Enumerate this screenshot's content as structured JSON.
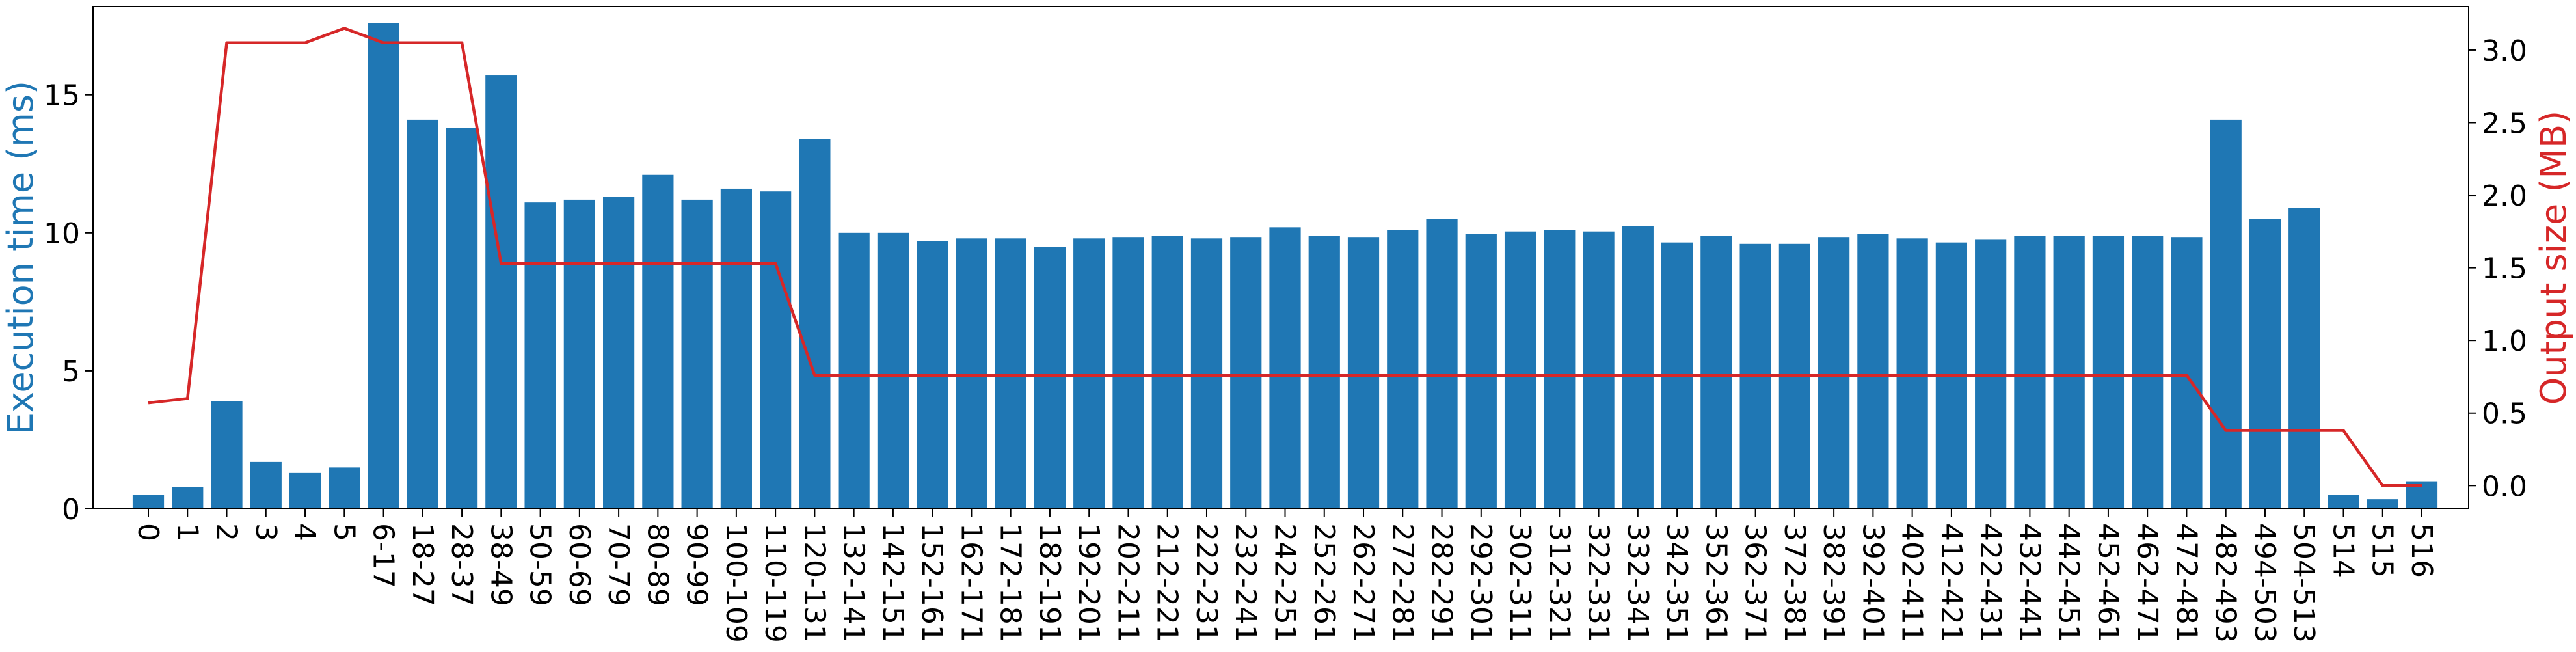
{
  "chart_data": {
    "type": "bar",
    "title": "",
    "xlabel": "",
    "categories": [
      "0",
      "1",
      "2",
      "3",
      "4",
      "5",
      "6-17",
      "18-27",
      "28-37",
      "38-49",
      "50-59",
      "60-69",
      "70-79",
      "80-89",
      "90-99",
      "100-109",
      "110-119",
      "120-131",
      "132-141",
      "142-151",
      "152-161",
      "162-171",
      "172-181",
      "182-191",
      "192-201",
      "202-211",
      "212-221",
      "222-231",
      "232-241",
      "242-251",
      "252-261",
      "262-271",
      "272-281",
      "282-291",
      "292-301",
      "302-311",
      "312-321",
      "322-331",
      "332-341",
      "342-351",
      "352-361",
      "362-371",
      "372-381",
      "382-391",
      "392-401",
      "402-411",
      "412-421",
      "422-431",
      "432-441",
      "442-451",
      "452-461",
      "462-471",
      "472-481",
      "482-493",
      "494-503",
      "504-513",
      "514",
      "515",
      "516"
    ],
    "series": [
      {
        "name": "Execution time (ms)",
        "type": "bar",
        "axis": "left",
        "color": "#1f77b4",
        "values": [
          0.5,
          0.8,
          3.9,
          1.7,
          1.3,
          1.5,
          17.6,
          14.1,
          13.8,
          15.7,
          11.1,
          11.2,
          11.3,
          12.1,
          11.2,
          11.6,
          11.5,
          13.4,
          10.0,
          10.0,
          9.7,
          9.8,
          9.8,
          9.5,
          9.8,
          9.85,
          9.9,
          9.8,
          9.85,
          10.2,
          9.9,
          9.85,
          10.1,
          10.5,
          9.95,
          10.05,
          10.1,
          10.05,
          10.25,
          9.65,
          9.9,
          9.6,
          9.6,
          9.85,
          9.95,
          9.8,
          9.65,
          9.75,
          9.9,
          9.9,
          9.9,
          9.9,
          9.85,
          14.1,
          10.5,
          10.9,
          0.5,
          0.35,
          1.0
        ]
      },
      {
        "name": "Output size (MB)",
        "type": "line",
        "axis": "right",
        "color": "#d62728",
        "values": [
          0.57,
          0.6,
          3.05,
          3.05,
          3.05,
          3.15,
          3.05,
          3.05,
          3.05,
          1.53,
          1.53,
          1.53,
          1.53,
          1.53,
          1.53,
          1.53,
          1.53,
          0.76,
          0.76,
          0.76,
          0.76,
          0.76,
          0.76,
          0.76,
          0.76,
          0.76,
          0.76,
          0.76,
          0.76,
          0.76,
          0.76,
          0.76,
          0.76,
          0.76,
          0.76,
          0.76,
          0.76,
          0.76,
          0.76,
          0.76,
          0.76,
          0.76,
          0.76,
          0.76,
          0.76,
          0.76,
          0.76,
          0.76,
          0.76,
          0.76,
          0.76,
          0.76,
          0.76,
          0.38,
          0.38,
          0.38,
          0.38,
          0.0,
          0.0
        ]
      }
    ],
    "y_left": {
      "label": "Execution time (ms)",
      "color": "#1f77b4",
      "range": [
        0,
        18.2
      ],
      "ticks": [
        0,
        5,
        10,
        15
      ],
      "tick_labels": [
        "0",
        "5",
        "10",
        "15"
      ]
    },
    "y_right": {
      "label": "Output size (MB)",
      "color": "#d62728",
      "range": [
        -0.16,
        3.3
      ],
      "ticks": [
        0.0,
        0.5,
        1.0,
        1.5,
        2.0,
        2.5,
        3.0
      ],
      "tick_labels": [
        "0.0",
        "0.5",
        "1.0",
        "1.5",
        "2.0",
        "2.5",
        "3.0"
      ]
    },
    "grid": false,
    "legend": "none"
  }
}
